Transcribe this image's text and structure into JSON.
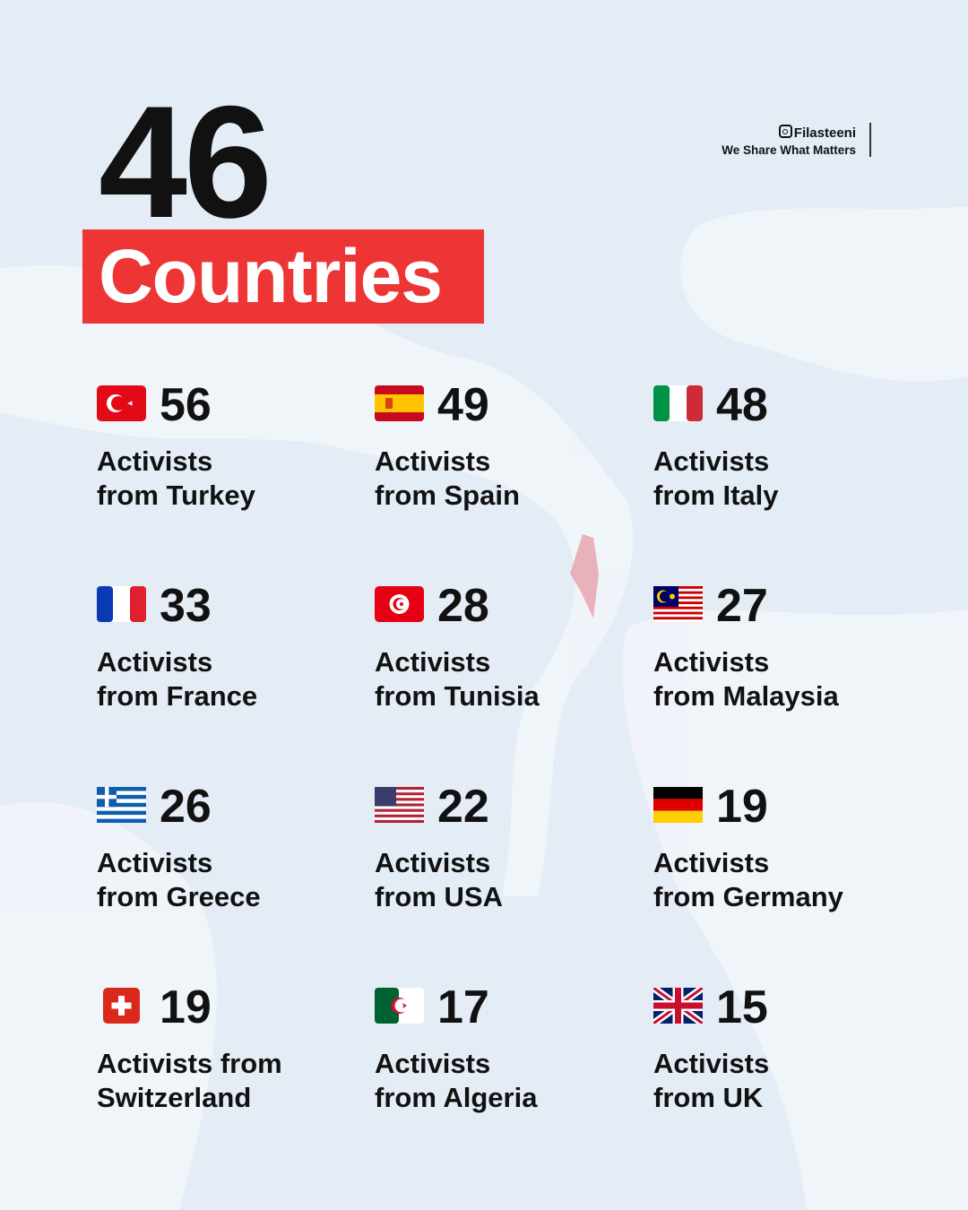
{
  "header": {
    "count": "46",
    "label": "Countries"
  },
  "brand": {
    "handle": "Filasteeni",
    "tagline": "We Share What Matters",
    "icon": "instagram-icon"
  },
  "colors": {
    "accent": "#ee3535",
    "background": "#e4ecf6"
  },
  "items": [
    {
      "number": "56",
      "line1": "Activists",
      "line2": "from Turkey",
      "flag": "turkey"
    },
    {
      "number": "49",
      "line1": "Activists",
      "line2": "from Spain",
      "flag": "spain"
    },
    {
      "number": "48",
      "line1": "Activists",
      "line2": "from Italy",
      "flag": "italy"
    },
    {
      "number": "33",
      "line1": "Activists",
      "line2": "from France",
      "flag": "france"
    },
    {
      "number": "28",
      "line1": "Activists",
      "line2": "from Tunisia",
      "flag": "tunisia"
    },
    {
      "number": "27",
      "line1": "Activists",
      "line2": "from Malaysia",
      "flag": "malaysia"
    },
    {
      "number": "26",
      "line1": "Activists",
      "line2": "from Greece",
      "flag": "greece"
    },
    {
      "number": "22",
      "line1": "Activists",
      "line2": "from USA",
      "flag": "usa"
    },
    {
      "number": "19",
      "line1": "Activists",
      "line2": "from Germany",
      "flag": "germany"
    },
    {
      "number": "19",
      "line1": "Activists from",
      "line2": "Switzerland",
      "flag": "switzerland"
    },
    {
      "number": "17",
      "line1": "Activists",
      "line2": "from Algeria",
      "flag": "algeria"
    },
    {
      "number": "15",
      "line1": "Activists",
      "line2": "from UK",
      "flag": "uk"
    }
  ]
}
